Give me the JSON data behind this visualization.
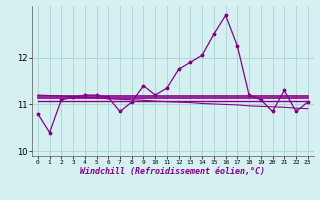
{
  "xlabel": "Windchill (Refroidissement éolien,°C)",
  "x": [
    0,
    1,
    2,
    3,
    4,
    5,
    6,
    7,
    8,
    9,
    10,
    11,
    12,
    13,
    14,
    15,
    16,
    17,
    18,
    19,
    20,
    21,
    22,
    23
  ],
  "y_main": [
    10.8,
    10.4,
    11.1,
    11.15,
    11.2,
    11.2,
    11.15,
    10.85,
    11.05,
    11.4,
    11.2,
    11.35,
    11.75,
    11.9,
    12.05,
    12.5,
    12.9,
    12.25,
    11.2,
    11.1,
    10.85,
    11.3,
    10.85,
    11.05
  ],
  "y_flat1": [
    11.17,
    11.17,
    11.17,
    11.17,
    11.17,
    11.17,
    11.17,
    11.17,
    11.17,
    11.17,
    11.17,
    11.17,
    11.17,
    11.17,
    11.17,
    11.17,
    11.17,
    11.17,
    11.17,
    11.17,
    11.17,
    11.17,
    11.17,
    11.17
  ],
  "y_flat2": [
    11.13,
    11.13,
    11.13,
    11.13,
    11.13,
    11.13,
    11.13,
    11.13,
    11.13,
    11.13,
    11.13,
    11.13,
    11.13,
    11.13,
    11.13,
    11.13,
    11.13,
    11.13,
    11.13,
    11.13,
    11.13,
    11.13,
    11.13,
    11.13
  ],
  "y_flat3": [
    11.08,
    11.08,
    11.08,
    11.08,
    11.08,
    11.08,
    11.08,
    11.08,
    11.08,
    11.08,
    11.08,
    11.08,
    11.08,
    11.08,
    11.08,
    11.08,
    11.08,
    11.08,
    11.08,
    11.08,
    11.08,
    11.08,
    11.08,
    11.08
  ],
  "y_trend": [
    11.2,
    11.19,
    11.18,
    11.16,
    11.15,
    11.14,
    11.12,
    11.11,
    11.1,
    11.09,
    11.07,
    11.06,
    11.05,
    11.04,
    11.02,
    11.01,
    11.0,
    10.99,
    10.97,
    10.96,
    10.95,
    10.94,
    10.92,
    10.91
  ],
  "line_color": "#880088",
  "bg_color": "#d4f0f0",
  "grid_color": "#aad4d4",
  "ylim": [
    9.9,
    13.1
  ],
  "yticks": [
    10,
    11,
    12
  ],
  "xticks": [
    0,
    1,
    2,
    3,
    4,
    5,
    6,
    7,
    8,
    9,
    10,
    11,
    12,
    13,
    14,
    15,
    16,
    17,
    18,
    19,
    20,
    21,
    22,
    23
  ]
}
